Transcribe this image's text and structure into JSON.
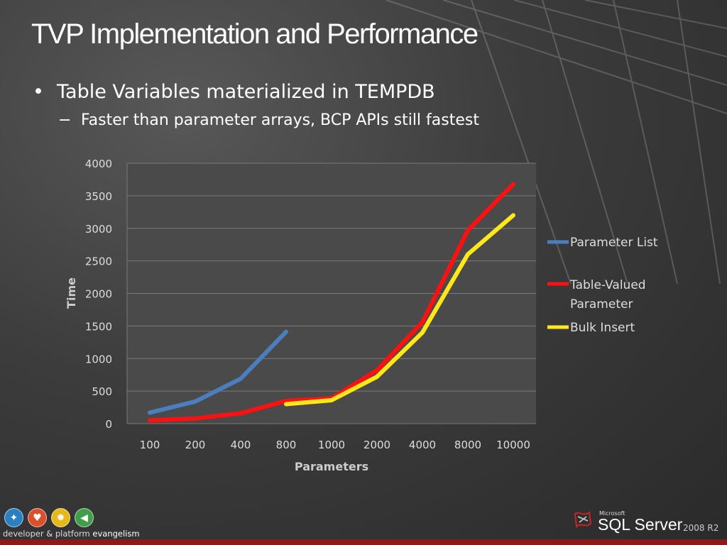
{
  "slide": {
    "title": "TVP Implementation and Performance",
    "bullet": "Table Variables materialized in TEMPDB",
    "subbullet": "Faster than parameter arrays, BCP APIs still fastest"
  },
  "footer": {
    "brand_text": "developer & platform",
    "brand_text_bold": "evangelism",
    "product_vendor": "Microsoft",
    "product_name": "SQL Server",
    "product_version": "2008 R2"
  },
  "chart_data": {
    "type": "line",
    "title": "",
    "xlabel": "Parameters",
    "ylabel": "Time",
    "categories": [
      "100",
      "200",
      "400",
      "800",
      "1000",
      "2000",
      "4000",
      "8000",
      "10000"
    ],
    "ylim": [
      0,
      4000
    ],
    "yticks": [
      0,
      500,
      1000,
      1500,
      2000,
      2500,
      3000,
      3500,
      4000
    ],
    "grid": true,
    "legend_position": "right",
    "series": [
      {
        "name": "Parameter List",
        "color": "#4a7ebf",
        "values": [
          170,
          340,
          690,
          1410,
          null,
          null,
          null,
          null,
          null
        ]
      },
      {
        "name": "Table-Valued Parameter",
        "color": "#ff1010",
        "values": [
          50,
          80,
          160,
          350,
          390,
          820,
          1560,
          2970,
          3680
        ]
      },
      {
        "name": "Bulk Insert",
        "color": "#ffe81a",
        "values": [
          null,
          null,
          null,
          300,
          360,
          720,
          1400,
          2600,
          3200
        ]
      }
    ]
  }
}
